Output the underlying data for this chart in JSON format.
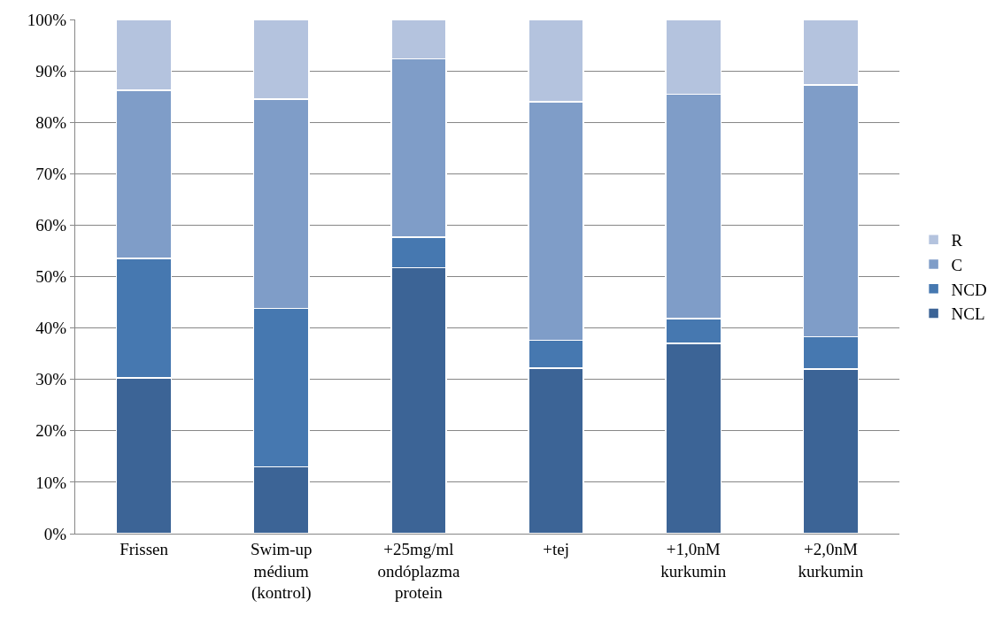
{
  "chart_data": {
    "type": "bar",
    "stacked": true,
    "categories": [
      "Frissen",
      "Swim-up\nmédium\n(kontrol)",
      "+25mg/ml\nondóplazma\nprotein",
      "+tej",
      "+1,0nM\nkurkumin",
      "+2,0nM\nkurkumin"
    ],
    "series": [
      {
        "name": "NCL",
        "color": "#3c6496",
        "values": [
          30.3,
          13.0,
          51.7,
          32.2,
          37.0,
          32.0
        ]
      },
      {
        "name": "NCD",
        "color": "#4678b0",
        "values": [
          23.2,
          30.8,
          6.0,
          5.4,
          4.8,
          6.3
        ]
      },
      {
        "name": "C",
        "color": "#7f9dc8",
        "values": [
          32.7,
          40.7,
          34.6,
          46.4,
          43.7,
          49.0
        ]
      },
      {
        "name": "R",
        "color": "#b4c3de",
        "values": [
          13.8,
          15.5,
          7.7,
          16.0,
          14.5,
          12.7
        ]
      }
    ],
    "ylim": [
      0,
      100
    ],
    "yticks": [
      {
        "value": 0,
        "label": "0%"
      },
      {
        "value": 10,
        "label": "10%"
      },
      {
        "value": 20,
        "label": "20%"
      },
      {
        "value": 30,
        "label": "30%"
      },
      {
        "value": 40,
        "label": "40%"
      },
      {
        "value": 50,
        "label": "50%"
      },
      {
        "value": 60,
        "label": "60%"
      },
      {
        "value": 70,
        "label": "70%"
      },
      {
        "value": 80,
        "label": "80%"
      },
      {
        "value": 90,
        "label": "90%"
      },
      {
        "value": 100,
        "label": "100%"
      }
    ],
    "grid": "y",
    "legend": "right"
  }
}
